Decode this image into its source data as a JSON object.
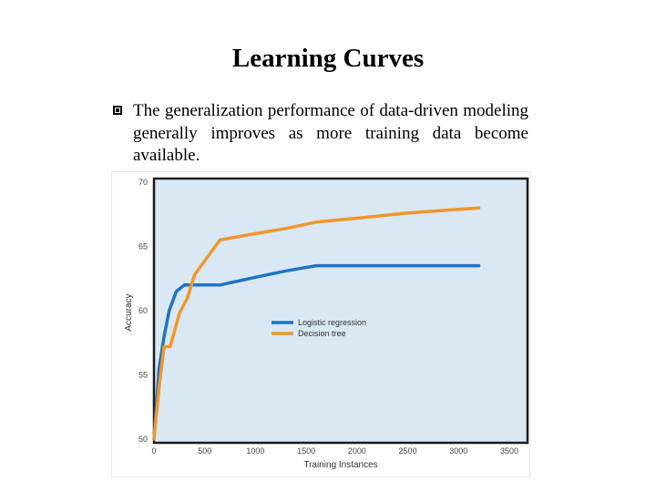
{
  "slide": {
    "title": "Learning Curves",
    "bullet": "The generalization performance of data-driven modeling generally improves as more training data become available."
  },
  "chart_data": {
    "type": "line",
    "xlabel": "Training Instances",
    "ylabel": "Accuracy",
    "xlim": [
      0,
      3500
    ],
    "ylim": [
      50,
      70
    ],
    "xticks": [
      0,
      500,
      1000,
      1500,
      2000,
      2500,
      3000,
      3500
    ],
    "yticks": [
      50,
      55,
      60,
      65,
      70
    ],
    "grid": false,
    "legend_position": "center",
    "colors": {
      "background": "#d9e8f2",
      "frame": "#1a1a1a"
    },
    "series": [
      {
        "name": "Logistic regression",
        "color": "#1f73c4",
        "points": [
          [
            0,
            50
          ],
          [
            50,
            55.5
          ],
          [
            100,
            58
          ],
          [
            150,
            60
          ],
          [
            220,
            61.5
          ],
          [
            300,
            62
          ],
          [
            650,
            62
          ],
          [
            1000,
            62.6
          ],
          [
            1300,
            63.1
          ],
          [
            1600,
            63.5
          ],
          [
            3200,
            63.5
          ]
        ]
      },
      {
        "name": "Decision tree",
        "color": "#f0962d",
        "points": [
          [
            0,
            50
          ],
          [
            50,
            54
          ],
          [
            100,
            57.2
          ],
          [
            160,
            57.2
          ],
          [
            250,
            59.8
          ],
          [
            330,
            61
          ],
          [
            400,
            62.8
          ],
          [
            650,
            65.5
          ],
          [
            1000,
            66
          ],
          [
            1300,
            66.4
          ],
          [
            1600,
            66.9
          ],
          [
            2000,
            67.2
          ],
          [
            2500,
            67.6
          ],
          [
            3200,
            68
          ]
        ]
      }
    ]
  }
}
